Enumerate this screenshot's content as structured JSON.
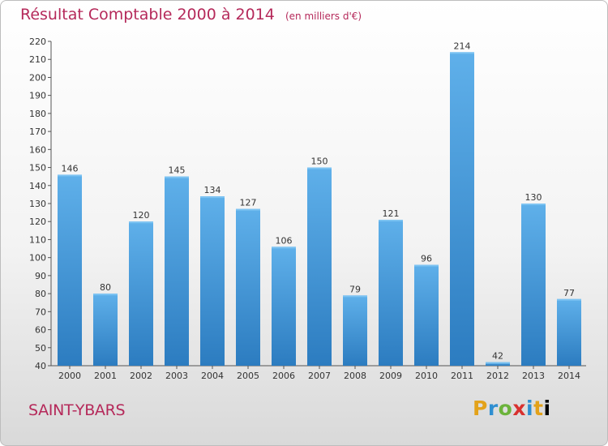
{
  "chart_data": {
    "type": "bar",
    "title": "Résultat Comptable 2000 à 2014",
    "subtitle": "(en milliers d'€)",
    "categories": [
      "2000",
      "2001",
      "2002",
      "2003",
      "2004",
      "2005",
      "2006",
      "2007",
      "2008",
      "2009",
      "2010",
      "2011",
      "2012",
      "2013",
      "2014"
    ],
    "values": [
      146,
      80,
      120,
      145,
      134,
      127,
      106,
      150,
      79,
      121,
      96,
      214,
      42,
      130,
      77
    ],
    "ylim": [
      40,
      220
    ],
    "yticks": [
      40,
      50,
      60,
      70,
      80,
      90,
      100,
      110,
      120,
      130,
      140,
      150,
      160,
      170,
      180,
      190,
      200,
      210,
      220
    ],
    "xlabel": "",
    "ylabel": "",
    "grid": false,
    "bar_color": "#3a8fd4",
    "bar_color_light": "#5eaee8"
  },
  "location": "SAINT-YBARS",
  "logo_text": "Proxiti"
}
